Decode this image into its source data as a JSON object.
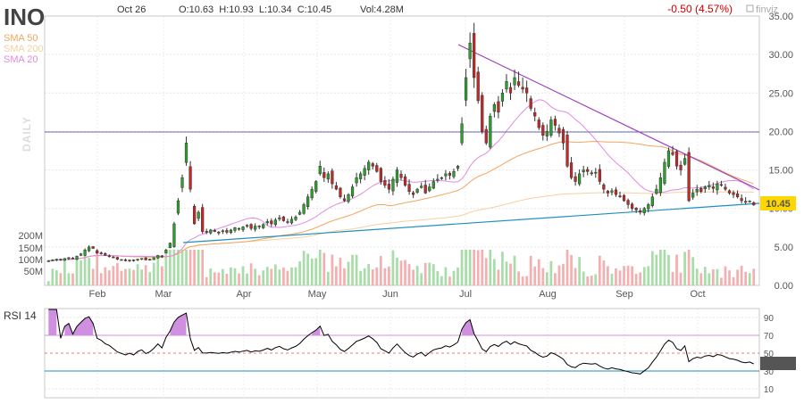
{
  "header": {
    "ticker": "INO",
    "date": "Oct 26",
    "ohlc": "O:10.63  H:10.93  L:10.34  C:10.45",
    "volume": "Vol:4.28M",
    "change": "-0.50 (4.57%)",
    "brand": "finviz"
  },
  "legend": {
    "sma50": "SMA 50",
    "sma200": "SMA 200",
    "sma20": "SMA 20",
    "period": "DAILY"
  },
  "colors": {
    "up": "#2ca02c",
    "down": "#c62828",
    "sma50": "#f4a460",
    "sma200": "#f5d0a0",
    "sma20": "#e08be0",
    "trend_down": "#a040c0",
    "trend_up": "#1f8fc0",
    "hline": "#6a6ab0",
    "vol_up": "#a8dca8",
    "vol_down": "#f4b0b0",
    "rsi_line": "#000000",
    "rsi_fill": "#d090e0"
  },
  "chart_data": [
    {
      "type": "candlestick",
      "title": "INO",
      "x_months": [
        "Feb",
        "Mar",
        "Apr",
        "May",
        "Jun",
        "Jul",
        "Aug",
        "Sep",
        "Oct"
      ],
      "y_ticks": [
        "0.00",
        "5.00",
        "10.00",
        "15.00",
        "20.00",
        "25.00",
        "30.00",
        "35.00"
      ],
      "ylim": [
        0,
        35
      ],
      "last_price": "10.45",
      "horizontal_line": 20,
      "downtrend_line": {
        "from": [
          "Jun 26",
          31.5
        ],
        "to": [
          "Oct 26",
          12.3
        ]
      },
      "uptrend_line": {
        "from": [
          "Mar 9",
          5.6
        ],
        "to": [
          "Oct 26",
          10.6
        ]
      },
      "series": [
        {
          "name": "SMA 50"
        },
        {
          "name": "SMA 200"
        },
        {
          "name": "SMA 20"
        }
      ],
      "closes_approx": [
        3.2,
        3.3,
        3.4,
        3.3,
        3.5,
        3.6,
        3.5,
        3.8,
        4.1,
        4.6,
        5.0,
        4.8,
        4.2,
        4.1,
        3.9,
        3.8,
        3.6,
        3.4,
        3.3,
        3.2,
        3.3,
        3.2,
        3.4,
        3.5,
        3.3,
        3.4,
        3.6,
        3.9,
        3.7,
        4.6,
        5.5,
        8.0,
        11.0,
        14.0,
        18.5,
        12.5,
        8.0,
        9.5,
        7.0,
        6.9,
        7.2,
        7.0,
        6.8,
        7.1,
        6.9,
        7.2,
        7.5,
        7.3,
        7.6,
        7.8,
        7.4,
        7.7,
        7.6,
        7.9,
        8.3,
        8.0,
        8.5,
        8.8,
        8.4,
        8.2,
        8.6,
        8.9,
        9.5,
        10.5,
        11.5,
        12.5,
        13.5,
        15.5,
        14.0,
        14.5,
        13.2,
        12.5,
        11.5,
        11.0,
        11.8,
        12.8,
        14.0,
        14.5,
        15.2,
        16.0,
        15.5,
        14.8,
        13.5,
        13.0,
        12.5,
        13.8,
        15.0,
        14.0,
        13.0,
        12.2,
        11.8,
        12.5,
        12.9,
        12.0,
        12.8,
        13.5,
        13.8,
        14.0,
        14.5,
        14.3,
        14.8,
        15.5,
        21.0,
        27.0,
        31.5,
        27.0,
        24.0,
        20.0,
        18.5,
        22.0,
        23.5,
        22.5,
        25.0,
        26.5,
        25.0,
        27.0,
        26.0,
        25.5,
        25.0,
        23.0,
        22.0,
        20.5,
        19.5,
        20.0,
        21.5,
        20.8,
        19.8,
        18.5,
        15.5,
        14.0,
        13.5,
        14.5,
        15.0,
        14.8,
        14.5,
        14.7,
        13.5,
        12.5,
        12.0,
        12.3,
        11.8,
        11.5,
        11.0,
        10.5,
        10.0,
        9.8,
        9.5,
        10.0,
        10.5,
        11.5,
        12.5,
        14.0,
        16.0,
        17.5,
        17.0,
        15.5,
        15.0,
        16.5,
        11.0,
        12.0,
        12.5,
        12.2,
        12.8,
        13.0,
        12.6,
        13.2,
        13.0,
        12.5,
        12.0,
        11.8,
        11.5,
        11.0,
        10.8,
        10.95,
        10.45
      ]
    },
    {
      "type": "bar",
      "name": "Volume",
      "y_ticks": [
        "50M",
        "100M",
        "150M",
        "200M"
      ]
    },
    {
      "type": "line",
      "title": "RSI 14",
      "y_ticks": [
        "10",
        "30",
        "50",
        "70",
        "90"
      ],
      "ylim": [
        0,
        100
      ],
      "overbought": 70,
      "oversold": 30,
      "last_value": "38.78"
    }
  ]
}
